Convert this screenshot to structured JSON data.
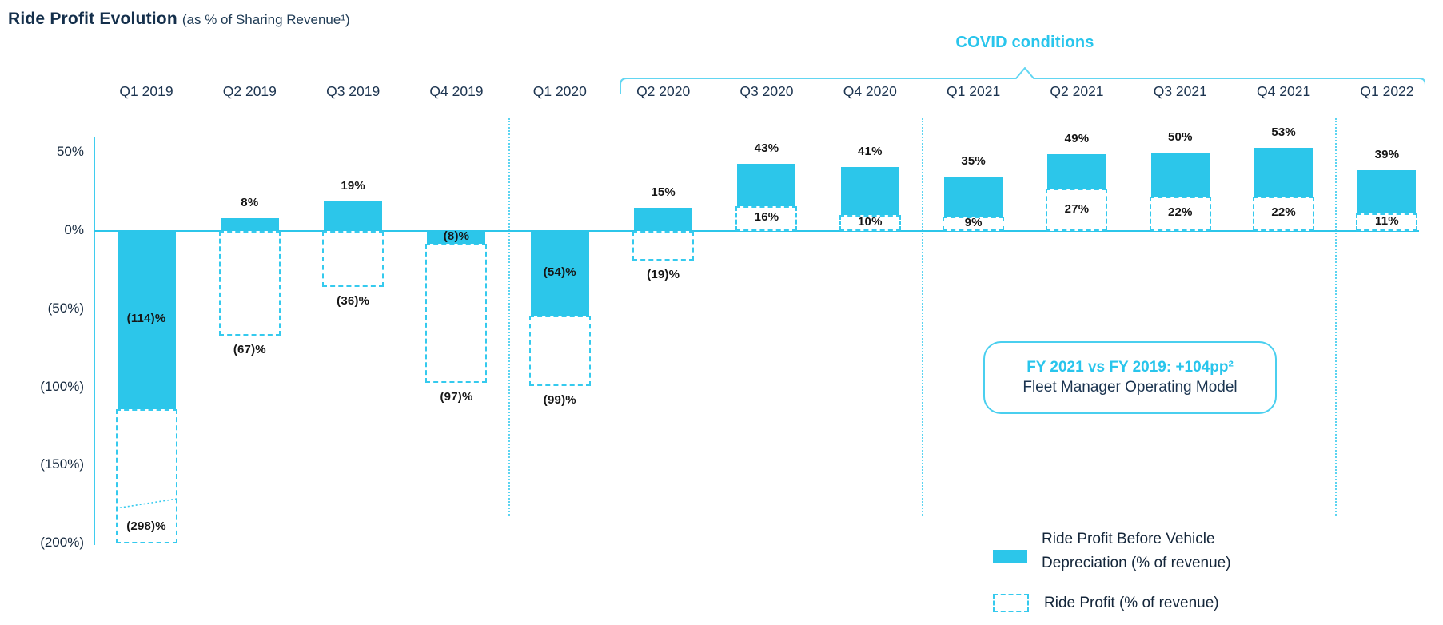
{
  "title": "Ride Profit Evolution",
  "subtitle": "(as % of Sharing Revenue¹)",
  "covid_label": "COVID conditions",
  "annotation_box": {
    "line1": "FY 2021 vs FY 2019: +104pp²",
    "line2": "Fleet Manager Operating Model"
  },
  "legend": {
    "item1": {
      "line1": "Ride Profit Before Vehicle",
      "line2": "Depreciation (% of revenue)",
      "swatch": "solid"
    },
    "item2": {
      "line1": "Ride Profit (% of revenue)",
      "swatch": "dashed"
    }
  },
  "colors": {
    "cyan": "#2cc6ea",
    "cyan_dashed_border": "#35caee",
    "covid_text": "#29c5ec",
    "navy_title": "#142f4b",
    "value_label": "#161616"
  },
  "chart_data": {
    "type": "bar",
    "title": "Ride Profit Evolution (as % of Sharing Revenue¹)",
    "categories": [
      "Q1 2019",
      "Q2 2019",
      "Q3 2019",
      "Q4 2019",
      "Q1 2020",
      "Q2 2020",
      "Q3 2020",
      "Q4 2020",
      "Q1 2021",
      "Q2 2021",
      "Q3 2021",
      "Q4 2021",
      "Q1 2022"
    ],
    "series": [
      {
        "name": "Ride Profit Before Vehicle Depreciation (% of revenue)",
        "style": "solid",
        "values": [
          -114,
          8,
          19,
          -8,
          -54,
          15,
          43,
          41,
          35,
          49,
          50,
          53,
          39
        ],
        "labels": [
          "(114)%",
          "8%",
          "19%",
          "(8)%",
          "(54)%",
          "15%",
          "43%",
          "41%",
          "35%",
          "49%",
          "50%",
          "53%",
          "39%"
        ]
      },
      {
        "name": "Ride Profit (% of revenue)",
        "style": "dashed",
        "values": [
          -298,
          -67,
          -36,
          -97,
          -99,
          -19,
          16,
          10,
          9,
          27,
          22,
          22,
          11
        ],
        "display_values": [
          -200,
          -67,
          -36,
          -97,
          -99,
          -19,
          16,
          10,
          9,
          27,
          22,
          22,
          11
        ],
        "labels": [
          "(298)%",
          "(67)%",
          "(36)%",
          "(97)%",
          "(99)%",
          "(19)%",
          "16%",
          "10%",
          "9%",
          "27%",
          "22%",
          "22%",
          "11%"
        ]
      }
    ],
    "axis_break": {
      "category": "Q1 2019",
      "series": "Ride Profit (% of revenue)",
      "true_value": -298,
      "shown_at": -200
    },
    "ytick_labels": [
      "50%",
      "0%",
      "(50%)",
      "(100%)",
      "(150%)",
      "(200%)"
    ],
    "ytick_values": [
      50,
      0,
      -50,
      -100,
      -150,
      -200
    ],
    "ylim": [
      -200,
      60
    ],
    "grid": false,
    "separators_between": [
      [
        "Q4 2019",
        "Q1 2020"
      ],
      [
        "Q4 2020",
        "Q1 2021"
      ],
      [
        "Q4 2021",
        "Q1 2022"
      ]
    ],
    "covid_span": [
      "Q2 2020",
      "Q1 2022"
    ],
    "legend_position": "bottom-right"
  }
}
